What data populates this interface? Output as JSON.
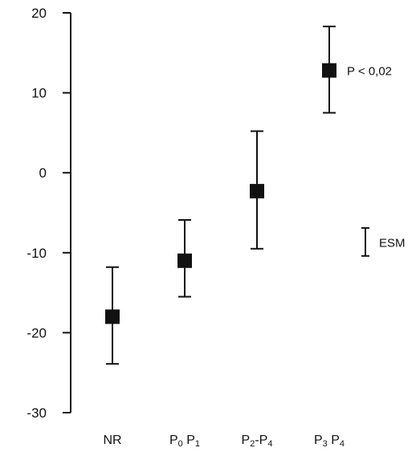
{
  "chart_data": {
    "type": "scatter",
    "title": "",
    "xlabel": "",
    "ylabel": "",
    "ylim": [
      -30,
      20
    ],
    "yticks": [
      20,
      10,
      0,
      -10,
      -20,
      -30
    ],
    "yticklabels": [
      "20",
      "10",
      "0",
      "-10",
      "-20",
      "-30"
    ],
    "grid": false,
    "legend": "none",
    "categories": [
      {
        "main": "NR",
        "parts": [
          {
            "t": "NR",
            "sub": false
          }
        ]
      },
      {
        "main": "P0 P1",
        "parts": [
          {
            "t": "P",
            "sub": false
          },
          {
            "t": "0",
            "sub": true
          },
          {
            "t": " P",
            "sub": false
          },
          {
            "t": "1",
            "sub": true
          }
        ]
      },
      {
        "main": "P2-P4",
        "parts": [
          {
            "t": "P",
            "sub": false
          },
          {
            "t": "2",
            "sub": true
          },
          {
            "t": "-P",
            "sub": false
          },
          {
            "t": "4",
            "sub": true
          }
        ]
      },
      {
        "main": "P3 P4",
        "parts": [
          {
            "t": "P",
            "sub": false
          },
          {
            "t": "3",
            "sub": true
          },
          {
            "t": " P",
            "sub": false
          },
          {
            "t": "4",
            "sub": true
          }
        ]
      }
    ],
    "series": [
      {
        "values": [
          -18,
          -11,
          -2.3,
          12.8
        ],
        "err_high": [
          -11.8,
          -5.9,
          5.2,
          18.3
        ],
        "err_low": [
          -23.9,
          -15.5,
          -9.5,
          7.5
        ]
      }
    ],
    "annotations": [
      {
        "text": "P < 0,02",
        "category_index": 3,
        "y": 12.8
      },
      {
        "text": "ESM",
        "kind": "scale-bar",
        "y_top": -6.9,
        "y_bottom": -10.4
      }
    ],
    "marker_color": "#111111",
    "axis_color": "#111111"
  }
}
